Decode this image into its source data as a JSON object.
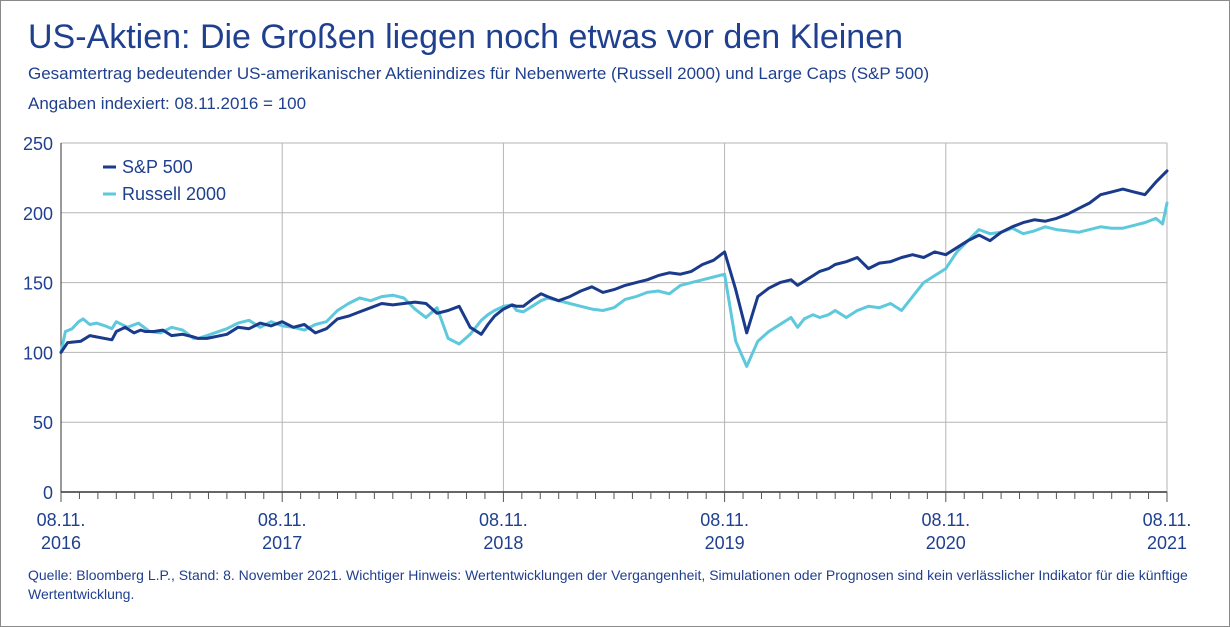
{
  "header": {
    "title": "US-Aktien: Die Großen liegen noch etwas vor den Kleinen",
    "subtitle": "Gesamtertrag bedeutender US-amerikanischer Aktienindizes für Nebenwerte (Russell 2000) und Large Caps (S&P 500)",
    "subtitle2": "Angaben indexiert: 08.11.2016 = 100"
  },
  "footer": {
    "source": "Quelle: Bloomberg L.P., Stand: 8. November 2021. Wichtiger Hinweis: Wertentwicklungen der Vergangenheit, Simulationen oder Prognosen sind kein verlässlicher Indikator für die künftige Wertentwicklung."
  },
  "colors": {
    "sp500": "#1a3a8c",
    "russell": "#5ec8dc",
    "text": "#1f3f8f",
    "grid": "#b5b5b5"
  },
  "chart_data": {
    "type": "line",
    "title": "US-Aktien: Die Großen liegen noch etwas vor den Kleinen",
    "xlabel": "",
    "ylabel": "",
    "xlim": [
      0,
      5
    ],
    "ylim": [
      0,
      250
    ],
    "yticks": [
      0,
      50,
      100,
      150,
      200,
      250
    ],
    "xticks": [
      {
        "pos": 0,
        "line1": "08.11.",
        "line2": "2016"
      },
      {
        "pos": 1,
        "line1": "08.11.",
        "line2": "2017"
      },
      {
        "pos": 2,
        "line1": "08.11.",
        "line2": "2018"
      },
      {
        "pos": 3,
        "line1": "08.11.",
        "line2": "2019"
      },
      {
        "pos": 4,
        "line1": "08.11.",
        "line2": "2020"
      },
      {
        "pos": 5,
        "line1": "08.11.",
        "line2": "2021"
      }
    ],
    "grid": true,
    "legend_position": "top-left",
    "series": [
      {
        "name": "S&P 500",
        "color": "#1a3a8c",
        "x": [
          0,
          0.03,
          0.09,
          0.13,
          0.23,
          0.25,
          0.29,
          0.33,
          0.36,
          0.38,
          0.42,
          0.46,
          0.5,
          0.55,
          0.6,
          0.62,
          0.66,
          0.75,
          0.8,
          0.85,
          0.9,
          0.95,
          1.0,
          1.05,
          1.1,
          1.15,
          1.2,
          1.25,
          1.3,
          1.35,
          1.4,
          1.45,
          1.5,
          1.55,
          1.6,
          1.65,
          1.7,
          1.75,
          1.8,
          1.85,
          1.9,
          1.93,
          1.96,
          2.0,
          2.04,
          2.06,
          2.09,
          2.13,
          2.17,
          2.2,
          2.25,
          2.3,
          2.35,
          2.4,
          2.45,
          2.5,
          2.55,
          2.6,
          2.65,
          2.7,
          2.75,
          2.8,
          2.85,
          2.9,
          2.95,
          3.0,
          3.05,
          3.1,
          3.15,
          3.2,
          3.25,
          3.3,
          3.33,
          3.36,
          3.4,
          3.43,
          3.47,
          3.5,
          3.55,
          3.6,
          3.65,
          3.7,
          3.75,
          3.8,
          3.85,
          3.9,
          3.95,
          4.0,
          4.05,
          4.1,
          4.15,
          4.2,
          4.25,
          4.3,
          4.35,
          4.4,
          4.45,
          4.5,
          4.55,
          4.6,
          4.65,
          4.7,
          4.75,
          4.8,
          4.85,
          4.9,
          4.95,
          5.0
        ],
        "values": [
          100,
          107,
          108,
          112,
          109,
          115,
          118,
          114,
          116,
          115,
          115,
          116,
          112,
          113,
          111,
          110,
          110,
          113,
          118,
          117,
          121,
          119,
          122,
          118,
          120,
          114,
          117,
          124,
          126,
          129,
          132,
          135,
          134,
          135,
          136,
          135,
          128,
          130,
          133,
          118,
          113,
          120,
          126,
          131,
          134,
          133,
          133,
          138,
          142,
          140,
          137,
          140,
          144,
          147,
          143,
          145,
          148,
          150,
          152,
          155,
          157,
          156,
          158,
          163,
          166,
          172,
          145,
          114,
          140,
          146,
          150,
          152,
          148,
          151,
          155,
          158,
          160,
          163,
          165,
          168,
          160,
          164,
          165,
          168,
          170,
          168,
          172,
          170,
          175,
          180,
          184,
          180,
          186,
          190,
          193,
          195,
          194,
          196,
          199,
          203,
          207,
          213,
          215,
          217,
          215,
          213,
          222,
          230
        ]
      },
      {
        "name": "Russell 2000",
        "color": "#5ec8dc",
        "x": [
          0,
          0.02,
          0.05,
          0.08,
          0.1,
          0.13,
          0.16,
          0.2,
          0.23,
          0.25,
          0.3,
          0.35,
          0.4,
          0.45,
          0.5,
          0.55,
          0.6,
          0.62,
          0.66,
          0.75,
          0.8,
          0.85,
          0.9,
          0.95,
          1.0,
          1.05,
          1.1,
          1.15,
          1.2,
          1.25,
          1.3,
          1.35,
          1.4,
          1.45,
          1.5,
          1.55,
          1.6,
          1.65,
          1.7,
          1.75,
          1.8,
          1.85,
          1.9,
          1.93,
          1.96,
          2.0,
          2.04,
          2.06,
          2.09,
          2.13,
          2.17,
          2.2,
          2.25,
          2.3,
          2.35,
          2.4,
          2.45,
          2.5,
          2.55,
          2.6,
          2.65,
          2.7,
          2.75,
          2.8,
          2.85,
          2.9,
          2.95,
          3.0,
          3.05,
          3.1,
          3.15,
          3.2,
          3.25,
          3.3,
          3.33,
          3.36,
          3.4,
          3.43,
          3.47,
          3.5,
          3.55,
          3.6,
          3.65,
          3.7,
          3.75,
          3.8,
          3.85,
          3.9,
          3.95,
          4.0,
          4.05,
          4.1,
          4.15,
          4.2,
          4.25,
          4.3,
          4.35,
          4.4,
          4.45,
          4.5,
          4.55,
          4.6,
          4.65,
          4.7,
          4.75,
          4.8,
          4.85,
          4.9,
          4.95,
          4.98,
          5.0
        ],
        "values": [
          100,
          115,
          117,
          122,
          124,
          120,
          121,
          119,
          117,
          122,
          118,
          121,
          115,
          114,
          118,
          116,
          110,
          110,
          112,
          117,
          121,
          123,
          118,
          122,
          119,
          118,
          116,
          120,
          122,
          130,
          135,
          139,
          137,
          140,
          141,
          139,
          131,
          125,
          132,
          110,
          106,
          113,
          123,
          127,
          130,
          133,
          134,
          130,
          129,
          133,
          137,
          139,
          137,
          135,
          133,
          131,
          130,
          132,
          138,
          140,
          143,
          144,
          142,
          148,
          150,
          152,
          154,
          156,
          108,
          90,
          108,
          115,
          120,
          125,
          118,
          124,
          127,
          125,
          127,
          130,
          125,
          130,
          133,
          132,
          135,
          130,
          140,
          150,
          155,
          160,
          172,
          180,
          188,
          185,
          186,
          189,
          185,
          187,
          190,
          188,
          187,
          186,
          188,
          190,
          189,
          189,
          191,
          193,
          196,
          192,
          207
        ]
      }
    ]
  }
}
